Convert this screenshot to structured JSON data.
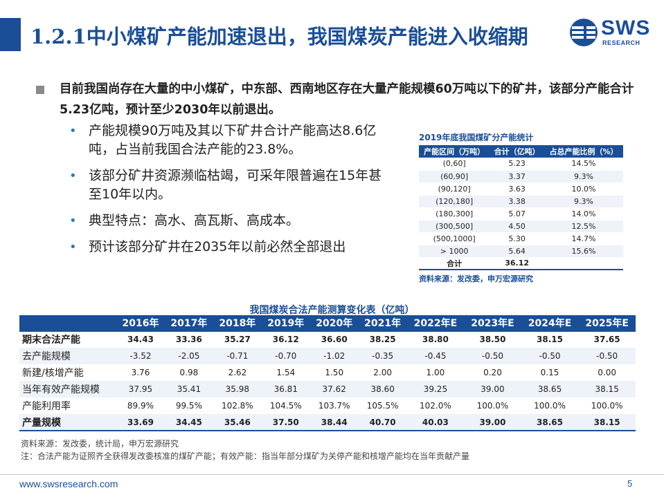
{
  "title": "1.2.1中小煤矿产能加速退出，我国煤炭产能进入收缩期",
  "logo": {
    "word": "SWS",
    "sub": "RESEARCH"
  },
  "main_point": {
    "part1": "目前我国尚存在大量的中小煤矿，中东部、西南地区存在大量产能规模",
    "highlight": "60万吨以下的矿井，该部分产能合计5.23亿吨，预计至少2030年以前退出。"
  },
  "sub_points": [
    "产能规模90万吨及其以下矿井合计产能高达8.6亿吨，占当前我国合法产能的23.8%。",
    "该部分矿井资源濒临枯竭，可采年限普遍在15年甚至10年以内。",
    "典型特点：高水、高瓦斯、高成本。",
    "预计该部分矿井在2035年以前必然全部退出"
  ],
  "capacity_table": {
    "title": "2019年底我国煤矿分产能统计",
    "headers": [
      "产能区间（万吨）",
      "合计（亿吨）",
      "占总产能比例（%）"
    ],
    "rows": [
      [
        "(0,60]",
        "5.23",
        "14.5%"
      ],
      [
        "(60,90]",
        "3.37",
        "9.3%"
      ],
      [
        "(90,120]",
        "3.63",
        "10.0%"
      ],
      [
        "(120,180]",
        "3.38",
        "9.3%"
      ],
      [
        "(180,300]",
        "5.07",
        "14.0%"
      ],
      [
        "(300,500]",
        "4.50",
        "12.5%"
      ],
      [
        "(500,1000]",
        "5.30",
        "14.7%"
      ],
      [
        "> 1000",
        "5.64",
        "15.6%"
      ]
    ],
    "total": [
      "合计",
      "36.12",
      ""
    ],
    "source": "资料来源：发改委，申万宏源研究"
  },
  "big_table": {
    "title": "我国煤炭合法产能测算变化表（亿吨）",
    "headers": [
      "",
      "2016年",
      "2017年",
      "2018年",
      "2019年",
      "2020年",
      "2021年",
      "2022年E",
      "2023年E",
      "2024年E",
      "2025年E"
    ],
    "rows": [
      {
        "bold": true,
        "cells": [
          "期末合法产能",
          "34.43",
          "33.36",
          "35.27",
          "36.12",
          "36.60",
          "38.25",
          "38.80",
          "38.50",
          "38.15",
          "37.65"
        ]
      },
      {
        "bold": false,
        "cells": [
          "去产能规模",
          "-3.52",
          "-2.05",
          "-0.71",
          "-0.70",
          "-1.02",
          "-0.35",
          "-0.45",
          "-0.50",
          "-0.50",
          "-0.50"
        ]
      },
      {
        "bold": false,
        "cells": [
          "新建/核增产能",
          "3.76",
          "0.98",
          "2.62",
          "1.54",
          "1.50",
          "2.00",
          "1.00",
          "0.20",
          "0.15",
          "0.00"
        ]
      },
      {
        "bold": false,
        "cells": [
          "当年有效产能规模",
          "37.95",
          "35.41",
          "35.98",
          "36.81",
          "37.62",
          "38.60",
          "39.25",
          "39.00",
          "38.65",
          "38.15"
        ]
      },
      {
        "bold": false,
        "cells": [
          "产能利用率",
          "89.9%",
          "99.5%",
          "102.8%",
          "104.5%",
          "103.7%",
          "105.5%",
          "102.0%",
          "100.0%",
          "100.0%",
          "100.0%"
        ]
      },
      {
        "bold": true,
        "cells": [
          "产量规模",
          "33.69",
          "34.45",
          "35.46",
          "37.50",
          "38.44",
          "40.70",
          "40.03",
          "39.00",
          "38.65",
          "38.15"
        ]
      }
    ]
  },
  "notes": [
    "资料来源：发改委，统计局，申万宏源研究",
    "注：合法产能为证照齐全获得发改委核准的煤矿产能；有效产能：指当年部分煤矿为关停产能和核增产能均在当年贡献产量"
  ],
  "footer": {
    "url": "www.swsresearch.com",
    "page": "5"
  },
  "colors": {
    "brand": "#1a4e97",
    "bullet": "#1a7ccc",
    "row_alt": "#eef2f9"
  }
}
